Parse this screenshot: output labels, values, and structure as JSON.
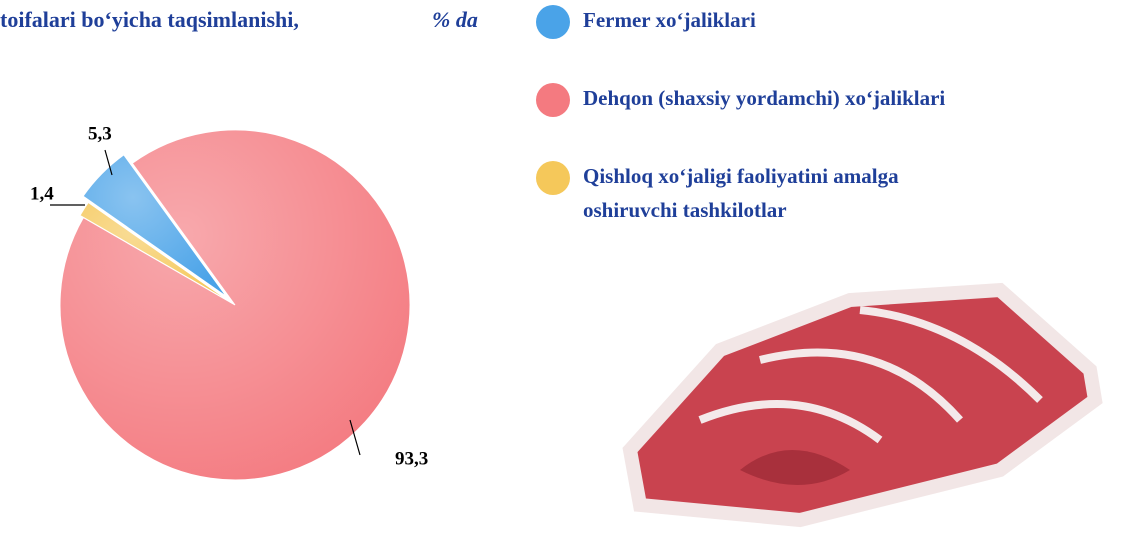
{
  "chart_data": {
    "type": "pie",
    "title": "toifalari bo‘yicha taqsimlanishi,",
    "subtitle": "% da",
    "categories": [
      "Fermer xo‘jaliklari",
      "Dehqon (shaxsiy yordamchi)  xo‘jaliklari",
      "Qishloq xo‘jaligi faoliyatini amalga oshiruvchi tashkilotlar"
    ],
    "values": [
      5.3,
      93.3,
      1.4
    ],
    "value_labels": [
      "5,3",
      "93,3",
      "1,4"
    ],
    "colors": [
      "#4aa3e8",
      "#f47a80",
      "#f5c85a"
    ]
  }
}
